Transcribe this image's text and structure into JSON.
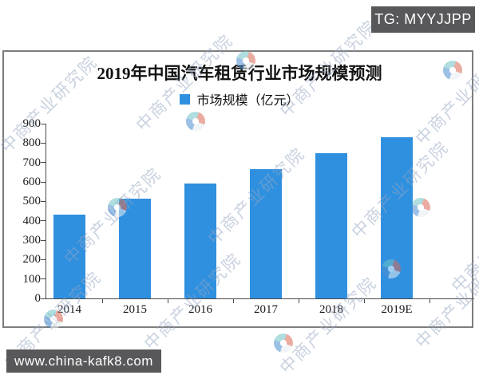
{
  "overlays": {
    "top_right_badge": "TG: MYYJJPP",
    "bottom_left_badge": "www.china-kafk8.com"
  },
  "watermark": {
    "text": "中商产业研究院",
    "logo_name": "pinwheel-logo"
  },
  "colors": {
    "bar": "#2f90e0",
    "badge_bg": "#58585a",
    "watermark_text": "#93a6c1",
    "frame_border": "#7d7d7d"
  },
  "chart_data": {
    "type": "bar",
    "title": "2019年中国汽车租赁行业市场规模预测",
    "legend": [
      "市场规模（亿元）"
    ],
    "legend_position": "top-center",
    "categories": [
      "2014",
      "2015",
      "2016",
      "2017",
      "2018",
      "2019E"
    ],
    "values": [
      430,
      515,
      590,
      665,
      750,
      830
    ],
    "xlabel": "",
    "ylabel": "",
    "ylim": [
      0,
      900
    ],
    "ytick_step": 100,
    "yticks": [
      0,
      100,
      200,
      300,
      400,
      500,
      600,
      700,
      800,
      900
    ],
    "grid": false,
    "bar_color": "#2f90e0"
  }
}
